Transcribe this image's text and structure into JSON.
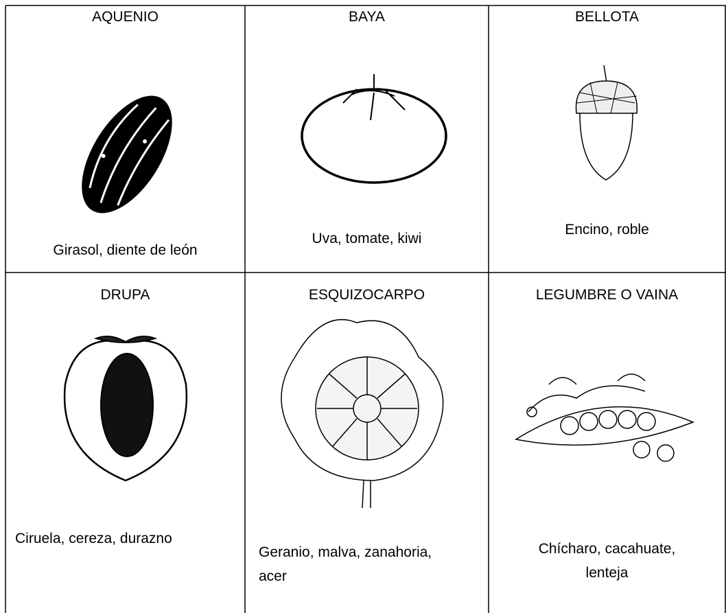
{
  "table": {
    "rows": [
      [
        {
          "title": "AQUENIO",
          "caption": [
            "Girasol, diente de león"
          ]
        },
        {
          "title": "BAYA",
          "caption": [
            "Uva, tomate, kiwi"
          ]
        },
        {
          "title": "BELLOTA",
          "caption": [
            "Encino, roble"
          ]
        }
      ],
      [
        {
          "title": "DRUPA",
          "caption": [
            "Ciruela, cereza, durazno"
          ]
        },
        {
          "title": "ESQUIZOCARPO",
          "caption": [
            "Geranio, malva, zanahoria,",
            "acer"
          ]
        },
        {
          "title": "LEGUMBRE O VAINA",
          "caption": [
            "Chícharo, cacahuate,",
            "lenteja"
          ]
        }
      ]
    ]
  }
}
